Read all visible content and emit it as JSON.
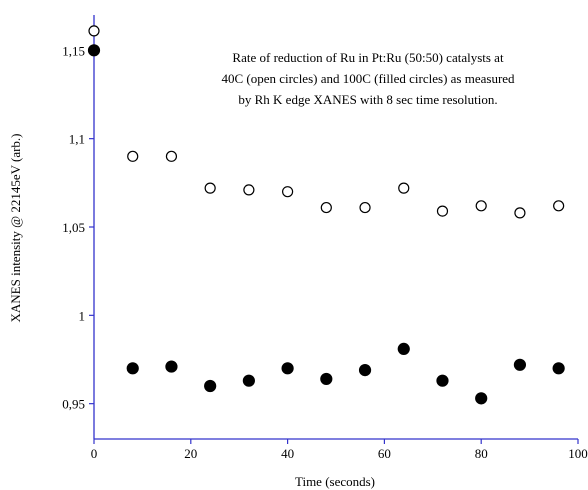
{
  "chart_data": {
    "type": "scatter",
    "title_lines": [
      "Rate of reduction of Ru in Pt:Ru (50:50) catalysts at",
      "40C (open circles) and 100C (filled circles) as measured",
      "by  Rh K edge XANES with 8 sec time resolution."
    ],
    "xlabel": "Time (seconds)",
    "ylabel": "XANES intensity @ 22145eV (arb.)",
    "xlim": [
      0,
      100
    ],
    "ylim": [
      0.93,
      1.17
    ],
    "x_ticks": [
      0,
      20,
      40,
      60,
      80,
      100
    ],
    "x_tick_labels": [
      "0",
      "20",
      "40",
      "60",
      "80",
      "100"
    ],
    "y_ticks": [
      0.95,
      1.0,
      1.05,
      1.1,
      1.15
    ],
    "y_tick_labels": [
      "0,95",
      "1",
      "1,05",
      "1,1",
      "1,15"
    ],
    "grid": false,
    "legend": "none",
    "axis_color": "#3333cc",
    "series": [
      {
        "marker": "open-circle",
        "color": "#000000",
        "x": [
          0,
          8,
          16,
          24,
          32,
          40,
          48,
          56,
          64,
          72,
          80,
          88,
          96
        ],
        "y": [
          1.161,
          1.09,
          1.09,
          1.072,
          1.071,
          1.07,
          1.061,
          1.061,
          1.072,
          1.059,
          1.062,
          1.058,
          1.062
        ]
      },
      {
        "marker": "filled-circle",
        "color": "#000000",
        "x": [
          0,
          8,
          16,
          24,
          32,
          40,
          48,
          56,
          64,
          72,
          80,
          88,
          96
        ],
        "y": [
          1.15,
          0.97,
          0.971,
          0.96,
          0.963,
          0.97,
          0.964,
          0.969,
          0.981,
          0.963,
          0.953,
          0.972,
          0.97
        ]
      }
    ]
  }
}
